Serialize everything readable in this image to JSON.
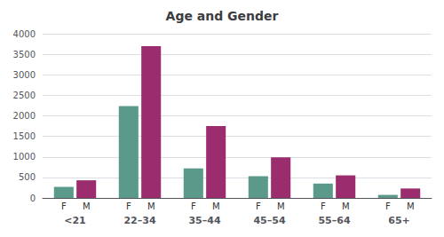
{
  "chart_data": {
    "type": "bar",
    "title": "Age and Gender",
    "categories": [
      "<21",
      "22–34",
      "35–44",
      "45–54",
      "55–64",
      "65+"
    ],
    "series": [
      {
        "name": "F",
        "color": "#5b9a8b",
        "values": [
          270,
          2240,
          720,
          530,
          350,
          75
        ]
      },
      {
        "name": "M",
        "color": "#9b2d6f",
        "values": [
          430,
          3700,
          1750,
          990,
          550,
          230
        ]
      }
    ],
    "ylim": [
      0,
      4000
    ],
    "yticks": [
      0,
      500,
      1000,
      1500,
      2000,
      2500,
      3000,
      3500,
      4000
    ],
    "grid": true
  }
}
